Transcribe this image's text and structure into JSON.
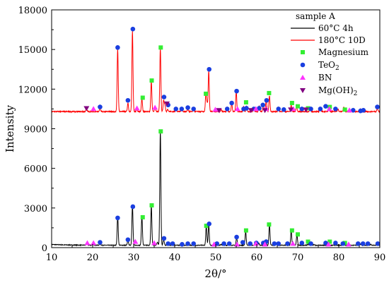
{
  "chart_data": {
    "type": "line",
    "xlabel": "2θ/°",
    "ylabel": "Intensity",
    "xlim": [
      10,
      90
    ],
    "ylim": [
      0,
      18000
    ],
    "xticks": [
      10,
      20,
      30,
      40,
      50,
      60,
      70,
      80,
      90
    ],
    "yticks": [
      0,
      3000,
      6000,
      9000,
      12000,
      15000,
      18000
    ],
    "grid": false,
    "legend_position": "top-right",
    "legend_title": "sample A",
    "series": [
      {
        "name": "60°C 4h",
        "color": "#000000",
        "baseline": 180,
        "peaks": [
          [
            18.6,
            90
          ],
          [
            20.1,
            80
          ],
          [
            21.8,
            120
          ],
          [
            26.1,
            2200
          ],
          [
            28.6,
            350
          ],
          [
            29.7,
            3050
          ],
          [
            32.0,
            2200
          ],
          [
            34.3,
            3000
          ],
          [
            35.8,
            250
          ],
          [
            36.5,
            8700
          ],
          [
            37.3,
            500
          ],
          [
            38.4,
            100
          ],
          [
            47.7,
            1450
          ],
          [
            48.3,
            1550
          ],
          [
            51.3,
            60
          ],
          [
            53.2,
            80
          ],
          [
            55.1,
            600
          ],
          [
            57.3,
            1050
          ],
          [
            60.5,
            150
          ],
          [
            62.2,
            300
          ],
          [
            63.1,
            1550
          ],
          [
            64.8,
            80
          ],
          [
            68.4,
            1100
          ],
          [
            69.8,
            800
          ],
          [
            72.5,
            100
          ],
          [
            74.0,
            60
          ],
          [
            77.5,
            200
          ],
          [
            80.9,
            80
          ],
          [
            81.2,
            200
          ],
          [
            85.3,
            80
          ],
          [
            87.8,
            70
          ]
        ]
      },
      {
        "name": "180°C 10D",
        "color": "#ff0000",
        "baseline": 10300,
        "peaks": [
          [
            18.5,
            250
          ],
          [
            21.8,
            250
          ],
          [
            26.1,
            4750
          ],
          [
            28.6,
            650
          ],
          [
            29.7,
            6150
          ],
          [
            30.8,
            150
          ],
          [
            32.0,
            1000
          ],
          [
            34.3,
            2300
          ],
          [
            35.2,
            350
          ],
          [
            36.5,
            4800
          ],
          [
            37.3,
            850
          ],
          [
            37.6,
            500
          ],
          [
            38.3,
            200
          ],
          [
            40.3,
            150
          ],
          [
            41.7,
            150
          ],
          [
            43.2,
            200
          ],
          [
            44.6,
            150
          ],
          [
            47.6,
            1300
          ],
          [
            47.9,
            600
          ],
          [
            48.3,
            3100
          ],
          [
            51.3,
            150
          ],
          [
            52.8,
            200
          ],
          [
            53.9,
            600
          ],
          [
            55.0,
            1500
          ],
          [
            56.8,
            400
          ],
          [
            57.5,
            400
          ],
          [
            59.3,
            300
          ],
          [
            60.6,
            400
          ],
          [
            61.6,
            500
          ],
          [
            62.3,
            850
          ],
          [
            63.1,
            1200
          ],
          [
            65.3,
            300
          ],
          [
            66.5,
            200
          ],
          [
            68.4,
            500
          ],
          [
            69.7,
            400
          ],
          [
            73.0,
            300
          ],
          [
            75.5,
            300
          ],
          [
            77.6,
            300
          ],
          [
            79.8,
            200
          ],
          [
            81.2,
            350
          ],
          [
            83.5,
            200
          ],
          [
            85.2,
            200
          ],
          [
            89.4,
            250
          ]
        ]
      }
    ],
    "markers": [
      {
        "name": "Magnesium",
        "shape": "square",
        "color": "#33ee33",
        "points": [
          [
            32.2,
            2300
          ],
          [
            34.4,
            3200
          ],
          [
            36.6,
            8800
          ],
          [
            47.7,
            1650
          ],
          [
            57.4,
            1300
          ],
          [
            63.0,
            1750
          ],
          [
            68.6,
            1300
          ],
          [
            70.0,
            1000
          ],
          [
            72.5,
            450
          ],
          [
            77.8,
            450
          ],
          [
            81.5,
            350
          ],
          [
            32.2,
            11350
          ],
          [
            34.4,
            12650
          ],
          [
            36.6,
            15150
          ],
          [
            47.6,
            11650
          ],
          [
            57.4,
            11000
          ],
          [
            63.0,
            11700
          ],
          [
            68.6,
            10950
          ],
          [
            70.0,
            10700
          ],
          [
            72.5,
            10550
          ],
          [
            77.8,
            10650
          ],
          [
            81.5,
            10450
          ]
        ]
      },
      {
        "name": "TeO2",
        "name_base": "TeO",
        "name_subscript": "2",
        "shape": "circle",
        "color": "#1a3fe0",
        "points": [
          [
            21.8,
            400
          ],
          [
            26.1,
            2250
          ],
          [
            28.6,
            600
          ],
          [
            29.8,
            3100
          ],
          [
            37.4,
            700
          ],
          [
            38.4,
            300
          ],
          [
            39.5,
            300
          ],
          [
            41.8,
            250
          ],
          [
            43.2,
            300
          ],
          [
            44.6,
            300
          ],
          [
            48.4,
            1800
          ],
          [
            50.3,
            300
          ],
          [
            52.0,
            300
          ],
          [
            53.3,
            300
          ],
          [
            55.1,
            800
          ],
          [
            56.6,
            400
          ],
          [
            58.4,
            300
          ],
          [
            59.9,
            350
          ],
          [
            61.6,
            350
          ],
          [
            62.3,
            450
          ],
          [
            64.3,
            300
          ],
          [
            65.3,
            300
          ],
          [
            67.5,
            300
          ],
          [
            71.0,
            350
          ],
          [
            73.2,
            300
          ],
          [
            76.8,
            350
          ],
          [
            79.2,
            350
          ],
          [
            81.0,
            300
          ],
          [
            84.7,
            300
          ],
          [
            85.9,
            300
          ],
          [
            87.1,
            300
          ],
          [
            89.5,
            300
          ],
          [
            21.8,
            10650
          ],
          [
            26.1,
            15150
          ],
          [
            28.6,
            11150
          ],
          [
            29.8,
            16550
          ],
          [
            37.4,
            11400
          ],
          [
            38.4,
            10800
          ],
          [
            40.3,
            10500
          ],
          [
            41.7,
            10500
          ],
          [
            43.2,
            10600
          ],
          [
            44.6,
            10500
          ],
          [
            48.4,
            13500
          ],
          [
            52.8,
            10500
          ],
          [
            53.9,
            10950
          ],
          [
            55.1,
            11850
          ],
          [
            56.8,
            10500
          ],
          [
            57.5,
            10550
          ],
          [
            59.3,
            10500
          ],
          [
            60.6,
            10550
          ],
          [
            61.5,
            10800
          ],
          [
            62.4,
            11150
          ],
          [
            65.3,
            10500
          ],
          [
            66.6,
            10450
          ],
          [
            71.0,
            10500
          ],
          [
            73.2,
            10500
          ],
          [
            75.5,
            10500
          ],
          [
            76.8,
            10700
          ],
          [
            79.2,
            10500
          ],
          [
            83.5,
            10400
          ],
          [
            85.3,
            10350
          ],
          [
            86.0,
            10400
          ],
          [
            89.4,
            10650
          ]
        ]
      },
      {
        "name": "BN",
        "shape": "triangle-up",
        "color": "#ff33ff",
        "points": [
          [
            18.7,
            350
          ],
          [
            20.2,
            350
          ],
          [
            30.4,
            450
          ],
          [
            35.0,
            350
          ],
          [
            49.6,
            250
          ],
          [
            55.2,
            250
          ],
          [
            59.8,
            300
          ],
          [
            62.0,
            250
          ],
          [
            68.8,
            300
          ],
          [
            77.5,
            250
          ],
          [
            82.4,
            250
          ],
          [
            20.2,
            10500
          ],
          [
            30.8,
            10550
          ],
          [
            35.2,
            10600
          ],
          [
            49.9,
            10450
          ],
          [
            55.3,
            10500
          ],
          [
            59.8,
            10500
          ],
          [
            62.3,
            10500
          ],
          [
            68.9,
            10500
          ],
          [
            77.7,
            10500
          ],
          [
            82.6,
            10400
          ]
        ]
      },
      {
        "name": "Mg(OH)2",
        "name_base": "Mg(OH)",
        "name_subscript": "2",
        "shape": "triangle-down",
        "color": "#800080",
        "points": [
          [
            18.5,
            10550
          ],
          [
            38.1,
            10900
          ],
          [
            50.8,
            10400
          ],
          [
            58.6,
            10400
          ],
          [
            62.0,
            10400
          ],
          [
            68.3,
            10450
          ],
          [
            72.0,
            10450
          ]
        ]
      }
    ]
  }
}
